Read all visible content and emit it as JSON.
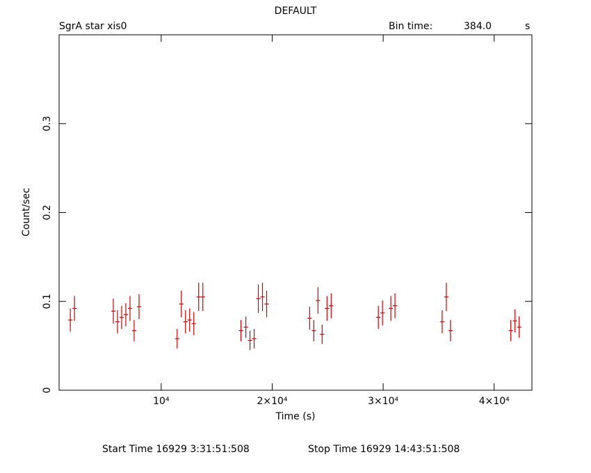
{
  "chart_data": {
    "type": "errorbar",
    "title": "DEFAULT",
    "subtitle": "SgrA star xis0",
    "bin_time_label": "Bin time:",
    "bin_time": "384.0",
    "bin_time_unit": "s",
    "xlabel": "Time (s)",
    "ylabel": "Count/sec",
    "start_time": "Start Time 16929  3:31:51:508",
    "stop_time": "Stop Time 16929 14:43:51:508",
    "xlim": [
      800,
      43400
    ],
    "ylim": [
      0,
      0.4
    ],
    "xticks": [
      {
        "value": 10000,
        "label": "10⁴"
      },
      {
        "value": 20000,
        "label": "2×10⁴"
      },
      {
        "value": 30000,
        "label": "3×10⁴"
      },
      {
        "value": 40000,
        "label": "4×10⁴"
      }
    ],
    "yticks": [
      0,
      0.1,
      0.2,
      0.3
    ],
    "color": "#cc0000",
    "x": [
      1812,
      2187,
      5687,
      6062,
      6437,
      6812,
      7187,
      7562,
      8000,
      11437,
      11812,
      12187,
      12562,
      12937,
      13375,
      13750,
      17187,
      17625,
      18000,
      18375,
      18750,
      19125,
      19500,
      23375,
      23750,
      24125,
      24500,
      24937,
      25312,
      29562,
      29937,
      30687,
      31062,
      35312,
      35687,
      36062,
      41500,
      41875,
      42250
    ],
    "xerr": [
      192,
      192,
      192,
      192,
      192,
      192,
      192,
      192,
      192,
      192,
      192,
      192,
      192,
      192,
      192,
      192,
      192,
      192,
      192,
      192,
      192,
      192,
      192,
      192,
      192,
      192,
      192,
      192,
      192,
      192,
      192,
      192,
      192,
      192,
      192,
      192,
      192,
      192,
      192
    ],
    "values": [
      0.079,
      0.092,
      0.089,
      0.077,
      0.082,
      0.085,
      0.092,
      0.067,
      0.094,
      0.058,
      0.097,
      0.077,
      0.079,
      0.075,
      0.105,
      0.105,
      0.067,
      0.071,
      0.056,
      0.058,
      0.103,
      0.105,
      0.097,
      0.081,
      0.067,
      0.101,
      0.063,
      0.092,
      0.095,
      0.082,
      0.087,
      0.092,
      0.095,
      0.077,
      0.105,
      0.067,
      0.067,
      0.078,
      0.071
    ],
    "yerr": [
      0.013,
      0.014,
      0.014,
      0.013,
      0.013,
      0.013,
      0.014,
      0.012,
      0.014,
      0.011,
      0.015,
      0.013,
      0.013,
      0.013,
      0.016,
      0.016,
      0.012,
      0.012,
      0.011,
      0.011,
      0.016,
      0.016,
      0.015,
      0.013,
      0.012,
      0.015,
      0.011,
      0.014,
      0.014,
      0.013,
      0.014,
      0.014,
      0.014,
      0.013,
      0.016,
      0.012,
      0.012,
      0.013,
      0.012
    ]
  }
}
